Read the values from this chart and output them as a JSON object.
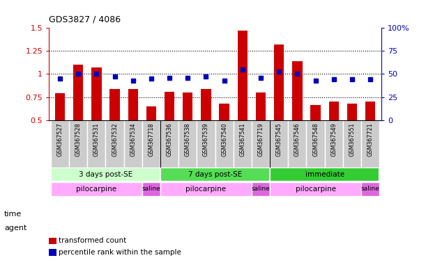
{
  "title": "GDS3827 / 4086",
  "samples": [
    "GSM367527",
    "GSM367528",
    "GSM367531",
    "GSM367532",
    "GSM367534",
    "GSM367718",
    "GSM367536",
    "GSM367538",
    "GSM367539",
    "GSM367540",
    "GSM367541",
    "GSM367719",
    "GSM367545",
    "GSM367546",
    "GSM367548",
    "GSM367549",
    "GSM367551",
    "GSM367721"
  ],
  "transformed_count": [
    0.79,
    1.1,
    1.07,
    0.84,
    0.84,
    0.65,
    0.81,
    0.8,
    0.84,
    0.68,
    1.47,
    0.8,
    1.32,
    1.14,
    0.66,
    0.7,
    0.68,
    0.7
  ],
  "percentile_rank": [
    45,
    50,
    50,
    47,
    43,
    45,
    46,
    46,
    47,
    43,
    55,
    46,
    53,
    50,
    43,
    44,
    44,
    44
  ],
  "bar_color": "#cc0000",
  "dot_color": "#0000bb",
  "ylim_left": [
    0.5,
    1.5
  ],
  "ylim_right": [
    0,
    100
  ],
  "yticks_left": [
    0.5,
    0.75,
    1.0,
    1.25,
    1.5
  ],
  "ytick_labels_left": [
    "0.5",
    "0.75",
    "1",
    "1.25",
    "1.5"
  ],
  "yticks_right": [
    0,
    25,
    50,
    75,
    100
  ],
  "ytick_labels_right": [
    "0",
    "25",
    "50",
    "75",
    "100%"
  ],
  "hlines": [
    0.75,
    1.0,
    1.25
  ],
  "time_groups": [
    {
      "label": "3 days post-SE",
      "start": 0,
      "end": 5,
      "color": "#ccffcc"
    },
    {
      "label": "7 days post-SE",
      "start": 6,
      "end": 11,
      "color": "#55dd55"
    },
    {
      "label": "immediate",
      "start": 12,
      "end": 17,
      "color": "#33cc33"
    }
  ],
  "agent_groups": [
    {
      "label": "pilocarpine",
      "start": 0,
      "end": 4,
      "color": "#ffaaff"
    },
    {
      "label": "saline",
      "start": 5,
      "end": 5,
      "color": "#dd66dd"
    },
    {
      "label": "pilocarpine",
      "start": 6,
      "end": 10,
      "color": "#ffaaff"
    },
    {
      "label": "saline",
      "start": 11,
      "end": 11,
      "color": "#dd66dd"
    },
    {
      "label": "pilocarpine",
      "start": 12,
      "end": 16,
      "color": "#ffaaff"
    },
    {
      "label": "saline",
      "start": 17,
      "end": 17,
      "color": "#dd66dd"
    }
  ],
  "time_label": "time",
  "agent_label": "agent",
  "legend_bar_label": "transformed count",
  "legend_dot_label": "percentile rank within the sample",
  "sample_box_color": "#cccccc",
  "main_bg": "#ffffff"
}
